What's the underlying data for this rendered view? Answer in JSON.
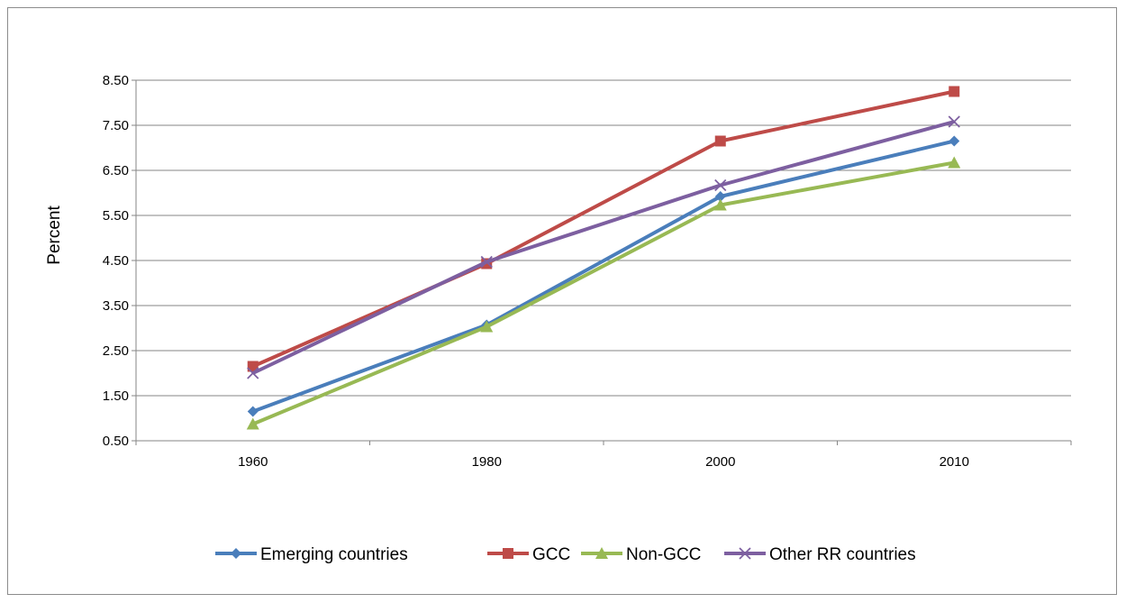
{
  "chart_data": {
    "type": "line",
    "categories": [
      "1960",
      "1980",
      "2000",
      "2010"
    ],
    "ylabel": "Percent",
    "ylim": [
      0.5,
      8.5
    ],
    "yticks": [
      "0.50",
      "1.50",
      "2.50",
      "3.50",
      "4.50",
      "5.50",
      "6.50",
      "7.50",
      "8.50"
    ],
    "grid": true,
    "legend_position": "bottom",
    "series": [
      {
        "name": "Emerging countries",
        "color": "#4A7EBB",
        "marker": "diamond",
        "values": [
          1.15,
          3.07,
          5.92,
          7.15
        ]
      },
      {
        "name": "GCC",
        "color": "#BE4B48",
        "marker": "square",
        "values": [
          2.15,
          4.43,
          7.15,
          8.25
        ]
      },
      {
        "name": "Non-GCC",
        "color": "#98B954",
        "marker": "triangle",
        "values": [
          0.87,
          3.03,
          5.73,
          6.67
        ]
      },
      {
        "name": "Other RR countries",
        "color": "#7D5FA0",
        "marker": "x",
        "values": [
          2.0,
          4.47,
          6.17,
          7.58
        ]
      }
    ]
  }
}
